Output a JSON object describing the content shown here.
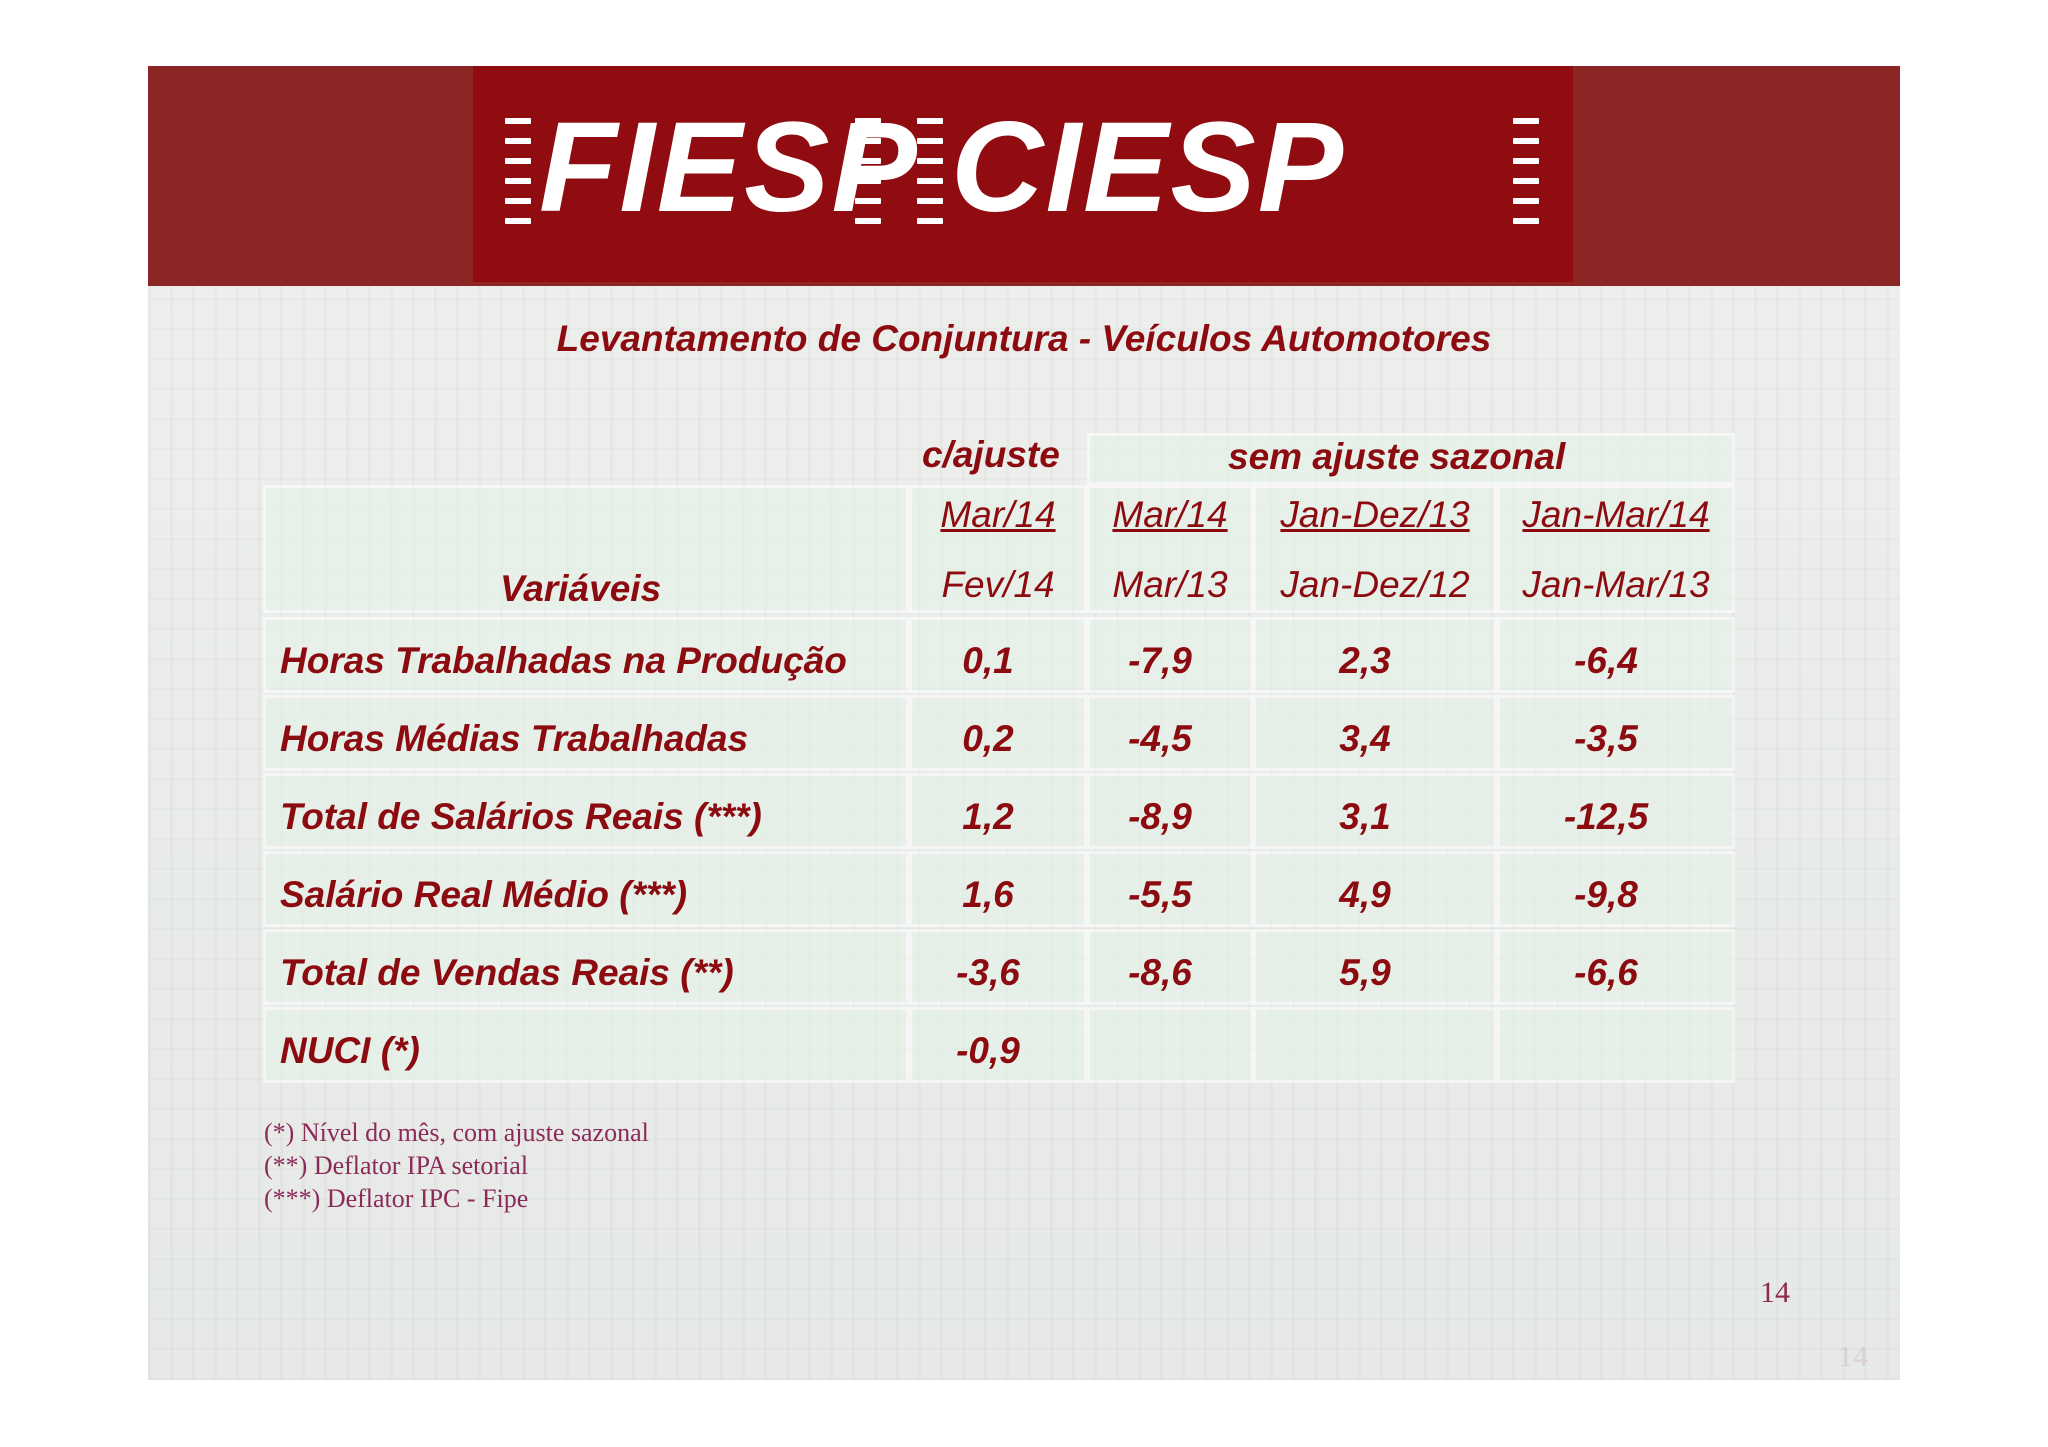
{
  "header": {
    "logo_left": "FIESP",
    "logo_right": "CIESP",
    "band_color": "#8c2624",
    "logo_block_color": "#900c10"
  },
  "title": "Levantamento de Conjuntura - Veículos Automotores",
  "groups": {
    "adjusted": "c/ajuste",
    "unadjusted": "sem ajuste sazonal"
  },
  "columns": [
    {
      "top": "Mar/14",
      "bottom": "Fev/14"
    },
    {
      "top": "Mar/14",
      "bottom": "Mar/13"
    },
    {
      "top": "Jan-Dez/13",
      "bottom": "Jan-Dez/12"
    },
    {
      "top": "Jan-Mar/14",
      "bottom": "Jan-Mar/13"
    }
  ],
  "variables_label": "Variáveis",
  "rows": [
    {
      "label": "Horas Trabalhadas na Produção",
      "values": [
        "0,1",
        "-7,9",
        "2,3",
        "-6,4"
      ]
    },
    {
      "label": "Horas Médias Trabalhadas",
      "values": [
        "0,2",
        "-4,5",
        "3,4",
        "-3,5"
      ]
    },
    {
      "label": "Total de Salários Reais (***)",
      "values": [
        "1,2",
        "-8,9",
        "3,1",
        "-12,5"
      ]
    },
    {
      "label": "Salário Real Médio (***)",
      "values": [
        "1,6",
        "-5,5",
        "4,9",
        "-9,8"
      ]
    },
    {
      "label": "Total de Vendas Reais (**)",
      "values": [
        "-3,6",
        "-8,6",
        "5,9",
        "-6,6"
      ]
    },
    {
      "label": "NUCI (*)",
      "values": [
        "-0,9",
        "",
        "",
        ""
      ]
    }
  ],
  "notes": [
    "(*) Nível do mês, com ajuste sazonal",
    "(**) Deflator IPA setorial",
    "(***) Deflator IPC - Fipe"
  ],
  "page_number": "14",
  "text_color": "#8c0b10"
}
